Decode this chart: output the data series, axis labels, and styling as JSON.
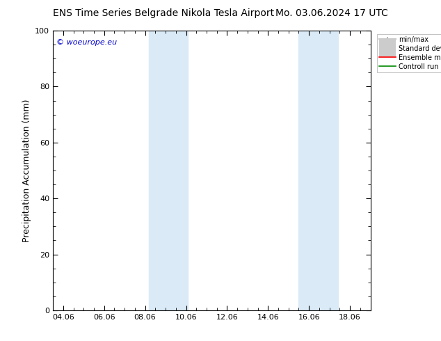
{
  "title_left": "ENS Time Series Belgrade Nikola Tesla Airport",
  "title_right": "Mo. 03.06.2024 17 UTC",
  "ylabel": "Precipitation Accumulation (mm)",
  "watermark": "© woeurope.eu",
  "watermark_color": "#0000cc",
  "ylim": [
    0,
    100
  ],
  "yticks": [
    0,
    20,
    40,
    60,
    80,
    100
  ],
  "xtick_labels": [
    "04.06",
    "06.06",
    "08.06",
    "10.06",
    "12.06",
    "14.06",
    "16.06",
    "18.06"
  ],
  "xtick_positions": [
    4,
    6,
    8,
    10,
    12,
    14,
    16,
    18
  ],
  "xlim": [
    3.5,
    19.0
  ],
  "shaded_bands": [
    {
      "x_start": 8.17,
      "x_end": 10.08
    },
    {
      "x_start": 15.5,
      "x_end": 17.42
    }
  ],
  "shade_color": "#daeaf7",
  "shade_alpha": 1.0,
  "legend_items": [
    {
      "label": "min/max",
      "color": "#aaaaaa",
      "lw": 1.2,
      "style": "line_with_caps"
    },
    {
      "label": "Standard deviation",
      "color": "#cccccc",
      "lw": 5,
      "style": "thick_line"
    },
    {
      "label": "Ensemble mean run",
      "color": "#ff0000",
      "lw": 1.2,
      "style": "line"
    },
    {
      "label": "Controll run",
      "color": "#008800",
      "lw": 1.2,
      "style": "line"
    }
  ],
  "bg_color": "#ffffff",
  "title_fontsize": 10,
  "ylabel_fontsize": 9,
  "tick_fontsize": 8,
  "legend_fontsize": 7,
  "watermark_fontsize": 8
}
